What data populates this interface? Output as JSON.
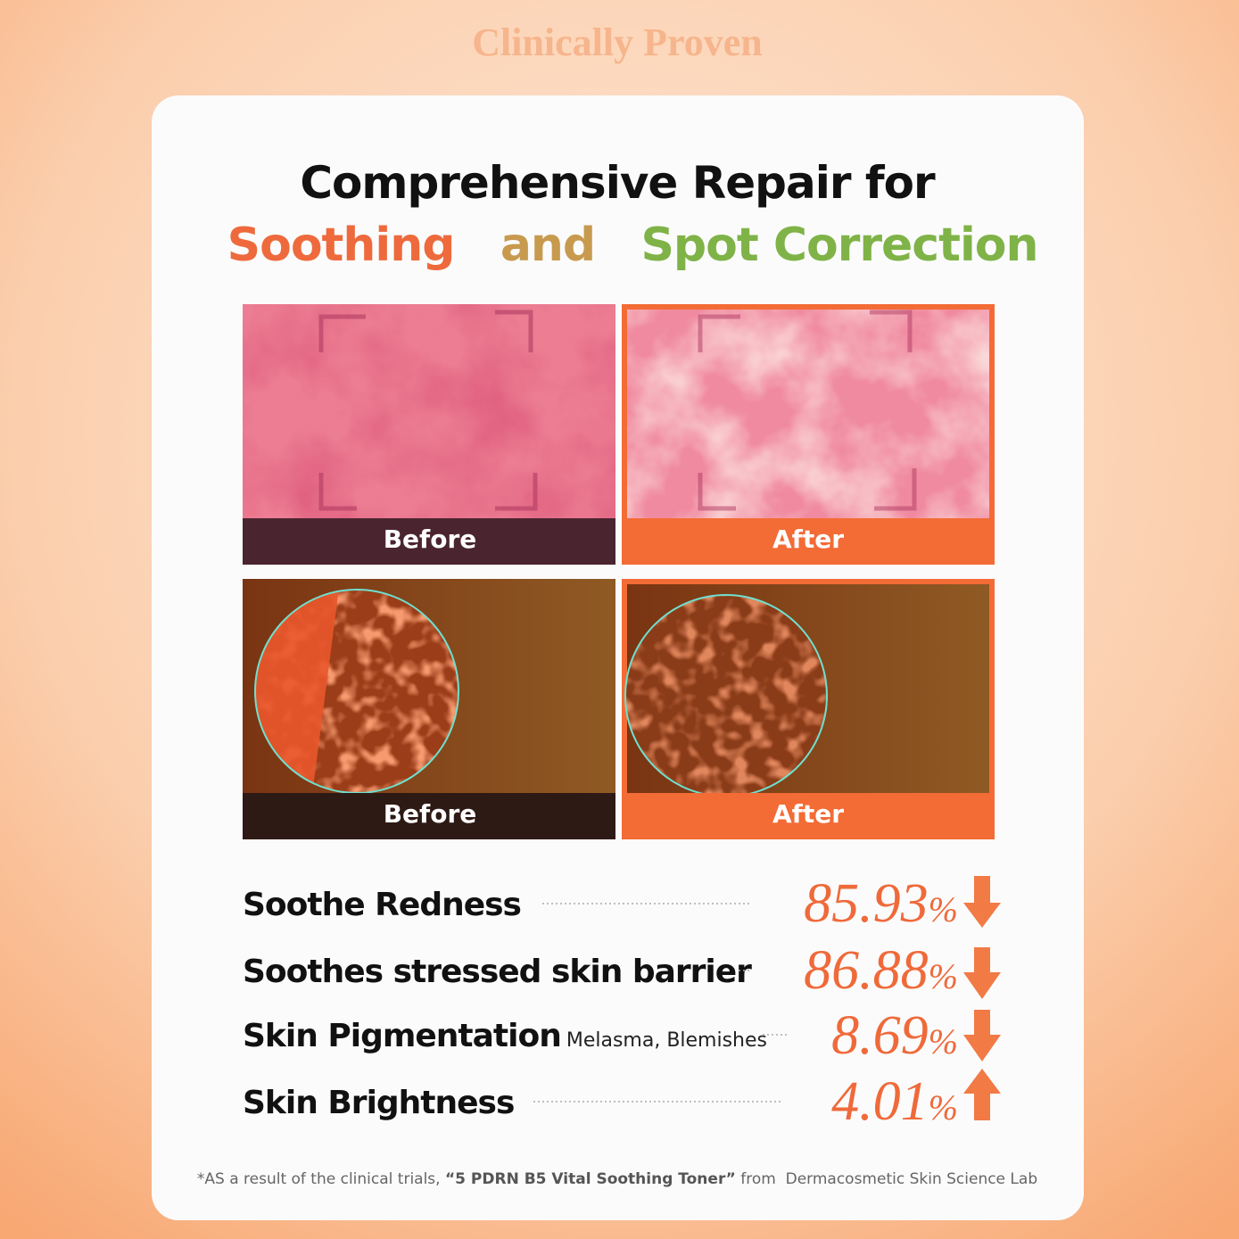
{
  "header": {
    "title": "Clinically Proven"
  },
  "heading": {
    "line1": "Comprehensive Repair for",
    "line2": [
      "Soothing",
      "and",
      "Spot Correction"
    ]
  },
  "images": [
    {
      "label": "Before"
    },
    {
      "label": "After"
    },
    {
      "label": "Before"
    },
    {
      "label": "After"
    }
  ],
  "stats": [
    {
      "label": "Soothe Redness",
      "value": "85.93",
      "unit": "%"
    },
    {
      "label": "Soothes stressed skin barrier",
      "value": "86.88",
      "unit": "%"
    },
    {
      "label": "Skin Pigmentation",
      "note": "Melasma, Blemishes",
      "value": "8.69",
      "unit": "%"
    },
    {
      "label": "Skin Brightness",
      "value": "4.01",
      "unit": "%"
    }
  ],
  "footnote": [
    "*AS a result of the clinical trials,",
    "“5 PDRN B5 Vital Soothing Toner”",
    "from  Dermacosmetic Skin Science Lab"
  ]
}
